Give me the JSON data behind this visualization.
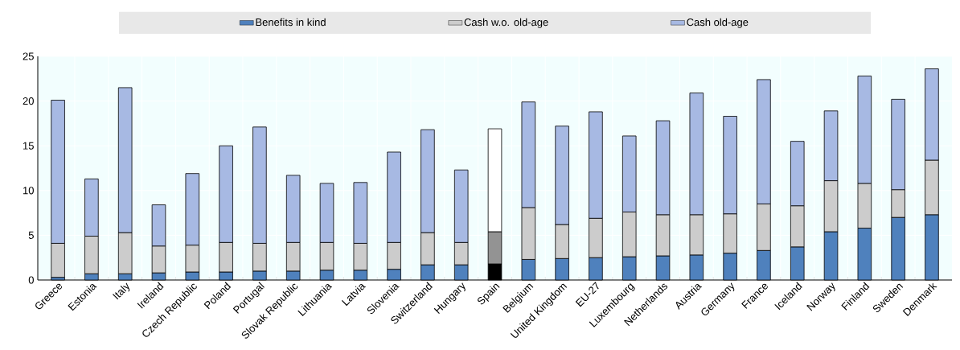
{
  "chart_data": {
    "type": "bar",
    "stacked": true,
    "categories": [
      "Greece",
      "Estonia",
      "Italy",
      "Ireland",
      "Czech Republic",
      "Poland",
      "Portugal",
      "Slovak Republic",
      "Lithuania",
      "Latvia",
      "Slovenia",
      "Switzerland",
      "Hungary",
      "Spain",
      "Belgium",
      "United Kingdom",
      "EU-27",
      "Luxembourg",
      "Netherlands",
      "Austria",
      "Germany",
      "France",
      "Iceland",
      "Norway",
      "Finland",
      "Sweden",
      "Denmark"
    ],
    "series": [
      {
        "name": "Benefits in kind",
        "color": "#4f81bd",
        "colors": [
          "#4f81bd",
          "#4f81bd",
          "#4f81bd",
          "#4f81bd",
          "#4f81bd",
          "#4f81bd",
          "#4f81bd",
          "#4f81bd",
          "#4f81bd",
          "#4f81bd",
          "#4f81bd",
          "#4f81bd",
          "#4f81bd",
          "#000000",
          "#4f81bd",
          "#4f81bd",
          "#4f81bd",
          "#4f81bd",
          "#4f81bd",
          "#4f81bd",
          "#4f81bd",
          "#4f81bd",
          "#4f81bd",
          "#4f81bd",
          "#4f81bd",
          "#4f81bd",
          "#4f81bd"
        ],
        "values": [
          0.3,
          0.7,
          0.7,
          0.8,
          0.9,
          0.9,
          1.0,
          1.0,
          1.1,
          1.1,
          1.2,
          1.7,
          1.7,
          1.8,
          2.3,
          2.4,
          2.5,
          2.6,
          2.7,
          2.8,
          3.0,
          3.3,
          3.7,
          5.4,
          5.8,
          7.0,
          7.3
        ]
      },
      {
        "name": "Cash w.o. old-age",
        "color": "#cccccc",
        "colors": [
          "#cccccc",
          "#cccccc",
          "#cccccc",
          "#cccccc",
          "#cccccc",
          "#cccccc",
          "#cccccc",
          "#cccccc",
          "#cccccc",
          "#cccccc",
          "#cccccc",
          "#cccccc",
          "#cccccc",
          "#939393",
          "#cccccc",
          "#cccccc",
          "#cccccc",
          "#cccccc",
          "#cccccc",
          "#cccccc",
          "#cccccc",
          "#cccccc",
          "#cccccc",
          "#cccccc",
          "#cccccc",
          "#cccccc",
          "#cccccc"
        ],
        "values": [
          3.8,
          4.2,
          4.6,
          3.0,
          3.0,
          3.3,
          3.1,
          3.2,
          3.1,
          3.0,
          3.0,
          3.6,
          2.5,
          3.6,
          5.8,
          3.8,
          4.4,
          5.0,
          4.6,
          4.5,
          4.4,
          5.2,
          4.6,
          5.7,
          5.0,
          3.1,
          6.1
        ]
      },
      {
        "name": "Cash old-age",
        "color": "#a7b9e3",
        "colors": [
          "#a7b9e3",
          "#a7b9e3",
          "#a7b9e3",
          "#a7b9e3",
          "#a7b9e3",
          "#a7b9e3",
          "#a7b9e3",
          "#a7b9e3",
          "#a7b9e3",
          "#a7b9e3",
          "#a7b9e3",
          "#a7b9e3",
          "#a7b9e3",
          "#ffffff",
          "#a7b9e3",
          "#a7b9e3",
          "#a7b9e3",
          "#a7b9e3",
          "#a7b9e3",
          "#a7b9e3",
          "#a7b9e3",
          "#a7b9e3",
          "#a7b9e3",
          "#a7b9e3",
          "#a7b9e3",
          "#a7b9e3",
          "#a7b9e3"
        ],
        "values": [
          16.0,
          6.4,
          16.2,
          4.6,
          8.0,
          10.8,
          13.0,
          7.5,
          6.6,
          6.8,
          10.1,
          11.5,
          8.1,
          11.5,
          11.8,
          11.0,
          11.9,
          8.5,
          10.5,
          13.6,
          10.9,
          13.9,
          7.2,
          7.8,
          12.0,
          10.1,
          10.2
        ]
      }
    ],
    "ylim": [
      0,
      25
    ],
    "yticks": [
      0,
      5,
      10,
      15,
      20,
      25
    ],
    "grid": true,
    "legend": "top"
  }
}
